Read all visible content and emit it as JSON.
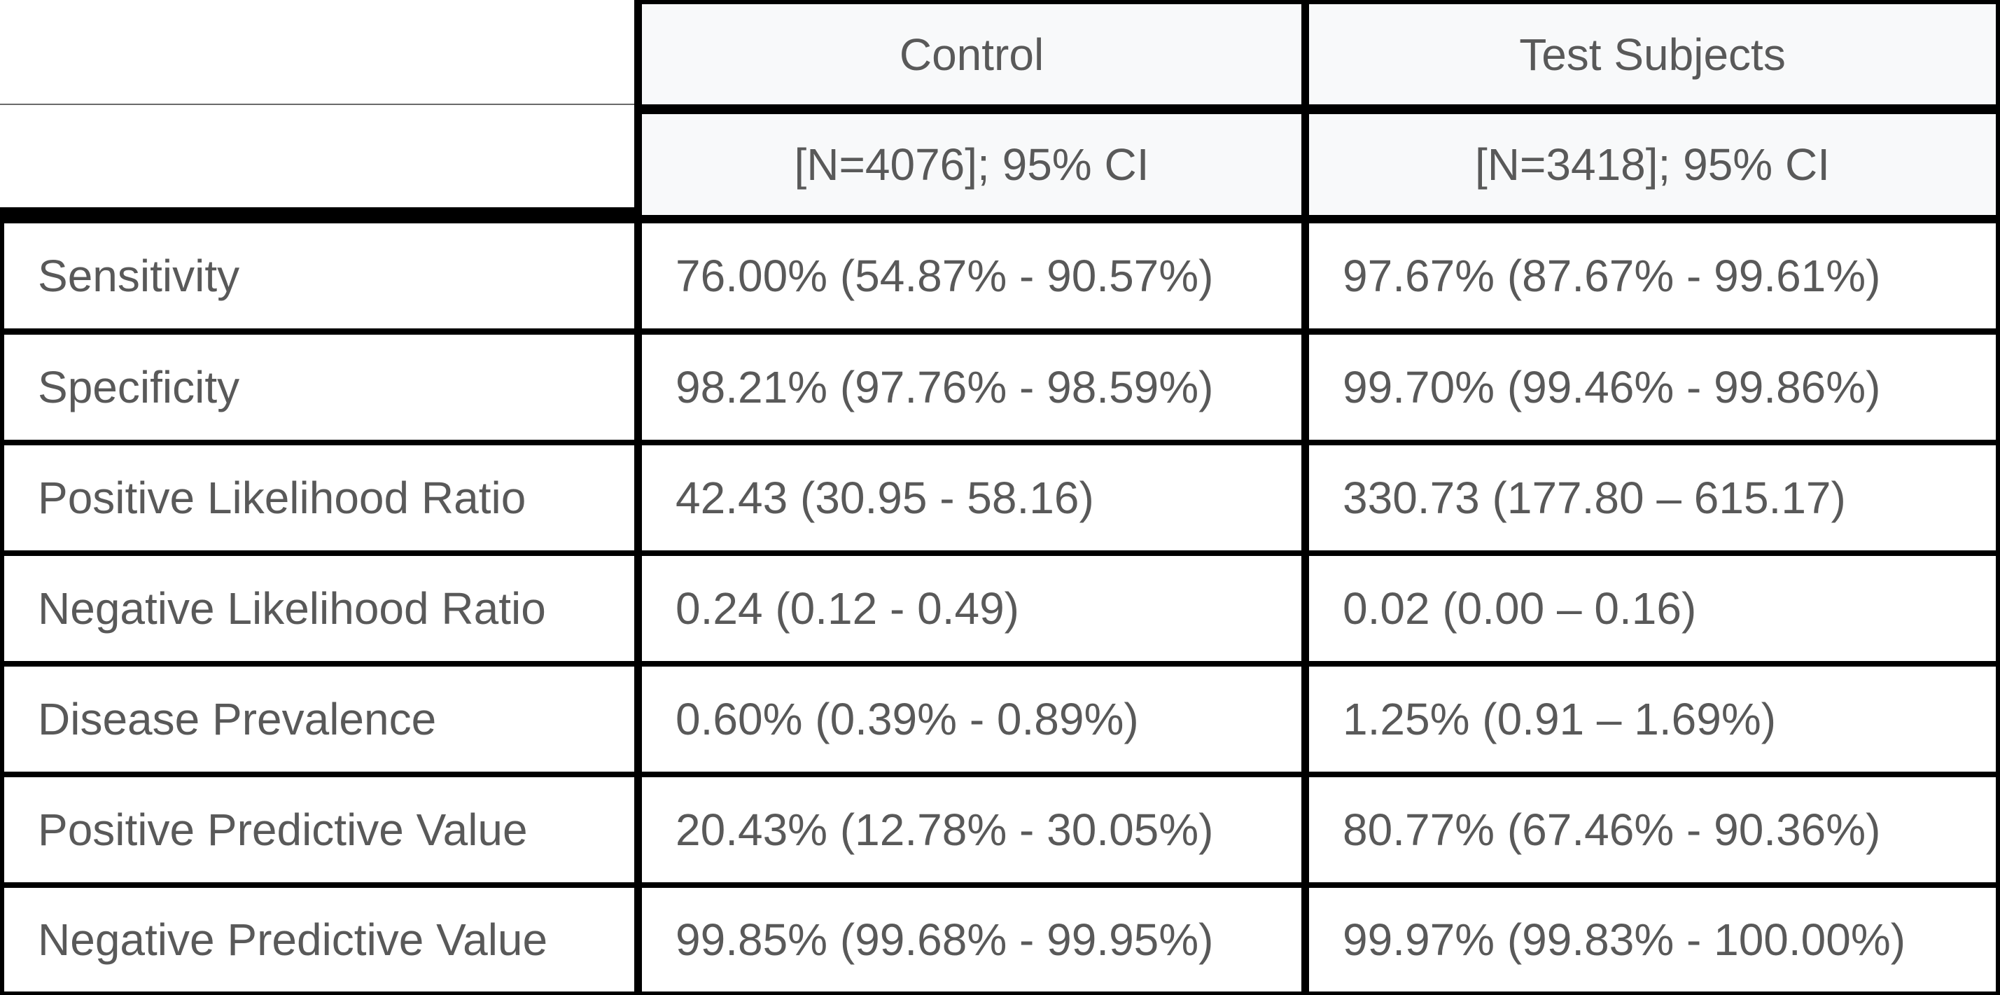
{
  "table": {
    "columns": [
      {
        "name": "Control",
        "subheader": "[N=4076]; 95% CI"
      },
      {
        "name": "Test Subjects",
        "subheader": "[N=3418]; 95% CI"
      }
    ],
    "rows": [
      {
        "metric": "Sensitivity",
        "control": "76.00% (54.87% - 90.57%)",
        "test": "97.67% (87.67% - 99.61%)"
      },
      {
        "metric": "Specificity",
        "control": "98.21% (97.76% - 98.59%)",
        "test": "99.70% (99.46% - 99.86%)"
      },
      {
        "metric": "Positive Likelihood Ratio",
        "control": "42.43 (30.95 - 58.16)",
        "test": "330.73 (177.80 – 615.17)"
      },
      {
        "metric": "Negative Likelihood Ratio",
        "control": "0.24 (0.12 - 0.49)",
        "test": "0.02 (0.00 – 0.16)"
      },
      {
        "metric": "Disease Prevalence",
        "control": "0.60% (0.39% - 0.89%)",
        "test": "1.25% (0.91 – 1.69%)"
      },
      {
        "metric": "Positive Predictive Value",
        "control": "20.43% (12.78% - 30.05%)",
        "test": "80.77% (67.46% - 90.36%)"
      },
      {
        "metric": "Negative Predictive Value",
        "control": "99.85% (99.68% - 99.95%)",
        "test": "99.97% (99.83% - 100.00%)"
      }
    ]
  }
}
